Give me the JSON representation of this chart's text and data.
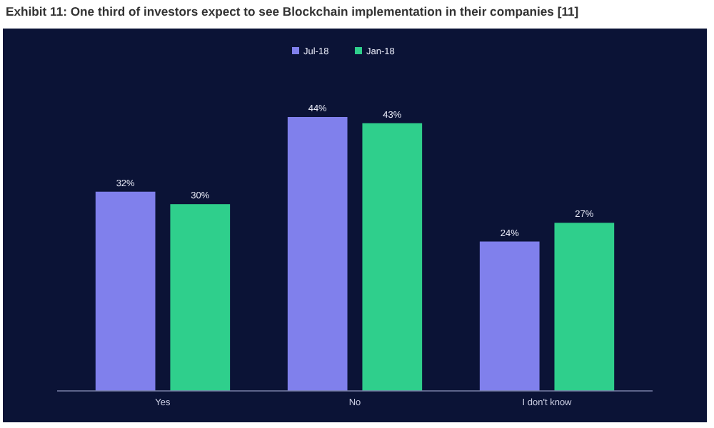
{
  "chart_data": {
    "type": "bar",
    "title": "Exhibit 11: One third of investors expect to see Blockchain implementation in their companies [11]",
    "categories": [
      "Yes",
      "No",
      "I don't know"
    ],
    "series": [
      {
        "name": "Jul-18",
        "color": "#8080ec",
        "values": [
          32,
          44,
          24
        ],
        "value_labels": [
          "32%",
          "44%",
          "24%"
        ]
      },
      {
        "name": "Jan-18",
        "color": "#2fcf8c",
        "values": [
          30,
          43,
          27
        ],
        "value_labels": [
          "30%",
          "43%",
          "27%"
        ]
      }
    ],
    "legend": "top",
    "grid": false
  }
}
